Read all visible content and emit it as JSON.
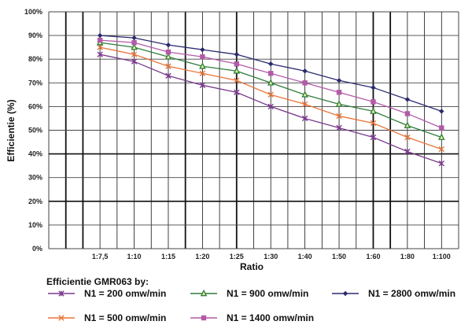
{
  "chart_data": {
    "type": "line",
    "title": "",
    "xlabel": "Ratio",
    "ylabel": "Efficientie (%)",
    "ylim": [
      0,
      100
    ],
    "yticks": [
      "0%",
      "10%",
      "20%",
      "30%",
      "40%",
      "50%",
      "60%",
      "70%",
      "80%",
      "90%",
      "100%"
    ],
    "categories": [
      "1:7,5",
      "1:10",
      "1:15",
      "1:20",
      "1:25",
      "1:30",
      "1:40",
      "1:50",
      "1:60",
      "1:80",
      "1:100"
    ],
    "grid": true,
    "legend_title": "Efficientie GMR063 by:",
    "legend_placement": "bottom",
    "series": [
      {
        "name": "N1 = 200 omw/min",
        "color": "#7a3a8c",
        "marker": "asterisk",
        "values": [
          82,
          79,
          73,
          69,
          66,
          60,
          55,
          51,
          47,
          41,
          36
        ]
      },
      {
        "name": "N1 = 500 omw/min",
        "color": "#e8753a",
        "marker": "x",
        "values": [
          85,
          82,
          77,
          74,
          71,
          65,
          61,
          56,
          53,
          47,
          42
        ]
      },
      {
        "name": "N1 = 900 omw/min",
        "color": "#2e7d3a",
        "marker": "triangle",
        "values": [
          87,
          85,
          81,
          77,
          75,
          70,
          65,
          61,
          58,
          52,
          47
        ]
      },
      {
        "name": "N1 = 1400 omw/min",
        "color": "#b35aa8",
        "marker": "square",
        "values": [
          88,
          87,
          83,
          81,
          78,
          74,
          70,
          66,
          62,
          57,
          51
        ]
      },
      {
        "name": "N1 = 2800 omw/min",
        "color": "#2a2a6e",
        "marker": "diamond",
        "values": [
          90,
          89,
          86,
          84,
          82,
          78,
          75,
          71,
          68,
          63,
          58
        ]
      }
    ]
  }
}
